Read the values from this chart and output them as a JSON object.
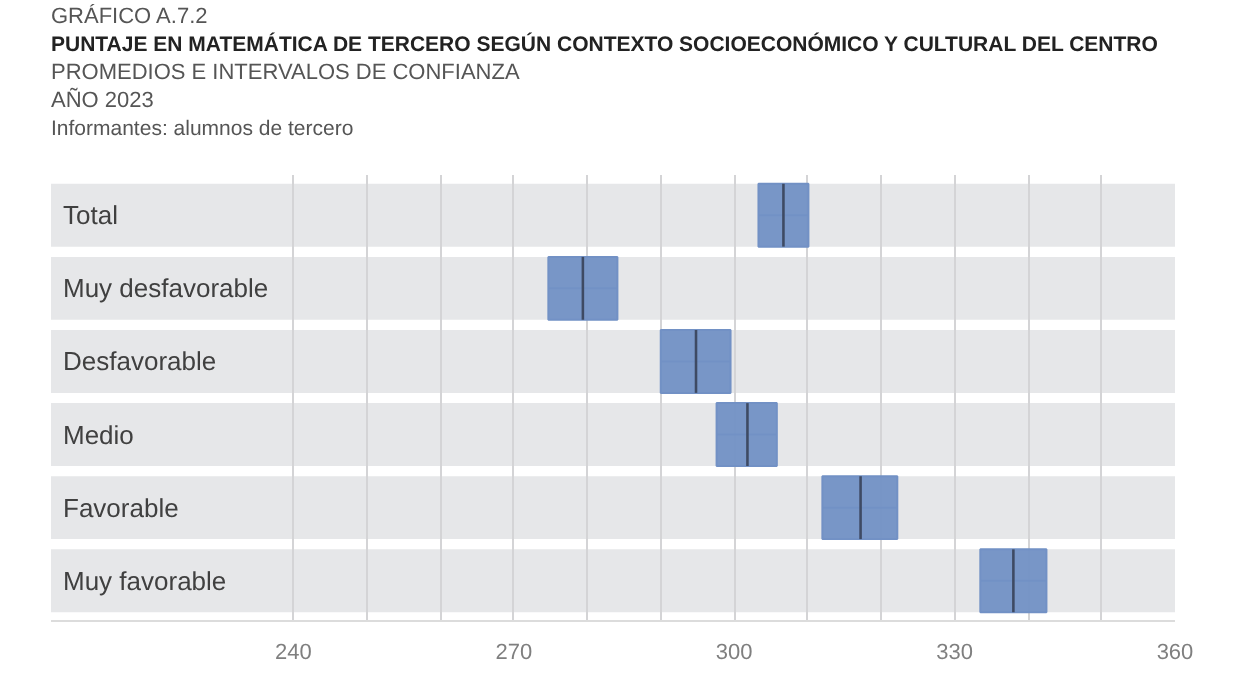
{
  "chart_data": {
    "type": "box",
    "orientation": "horizontal",
    "title": "PUNTAJE EN MATEMÁTICA DE TERCERO SEGÚN CONTEXTO SOCIOECONÓMICO Y CULTURAL DEL CENTRO",
    "subtitle": "PROMEDIOS E INTERVALOS DE CONFIANZA",
    "annotations": [
      "GRÁFICO A.7.2",
      "AÑO 2023",
      "Informantes: alumnos de tercero"
    ],
    "categories": [
      "Total",
      "Muy desfavorable",
      "Desfavorable",
      "Medio",
      "Favorable",
      "Muy favorable"
    ],
    "series": [
      {
        "color": "#7291c5",
        "boxes": [
          {
            "low": 303.3,
            "q1": 303.3,
            "median": 306.7,
            "q3": 310.1,
            "high": 310.1
          },
          {
            "low": 274.7,
            "q1": 274.7,
            "median": 279.4,
            "q3": 284.1,
            "high": 284.1
          },
          {
            "low": 290.0,
            "q1": 290.0,
            "median": 294.8,
            "q3": 299.5,
            "high": 299.5
          },
          {
            "low": 297.6,
            "q1": 297.6,
            "median": 301.8,
            "q3": 305.8,
            "high": 305.8
          },
          {
            "low": 312.0,
            "q1": 312.0,
            "median": 317.2,
            "q3": 322.2,
            "high": 322.2
          },
          {
            "low": 333.5,
            "q1": 333.5,
            "median": 338.0,
            "q3": 342.5,
            "high": 342.5
          }
        ]
      }
    ],
    "xlim": [
      207,
      360
    ],
    "xticks": [
      240,
      {
        "value": 250,
        "label": null
      },
      {
        "value": 260,
        "label": null
      },
      270,
      {
        "value": 280,
        "label": null
      },
      {
        "value": 290,
        "label": null
      },
      300,
      {
        "value": 310,
        "label": null
      },
      {
        "value": 320,
        "label": null
      },
      330,
      {
        "value": 340,
        "label": null
      },
      {
        "value": 350,
        "label": null
      },
      360
    ],
    "bands": [
      {
        "axis": "y",
        "from": "Total",
        "to": "Total",
        "color": "#e6e7e9"
      },
      {
        "axis": "y",
        "from": "Muy desfavorable",
        "to": "Muy desfavorable",
        "color": "#e6e7e9"
      },
      {
        "axis": "y",
        "from": "Desfavorable",
        "to": "Desfavorable",
        "color": "#e6e7e9"
      },
      {
        "axis": "y",
        "from": "Medio",
        "to": "Medio",
        "color": "#e6e7e9"
      },
      {
        "axis": "y",
        "from": "Favorable",
        "to": "Favorable",
        "color": "#e6e7e9"
      },
      {
        "axis": "y",
        "from": "Muy favorable",
        "to": "Muy favorable",
        "color": "#e6e7e9"
      }
    ],
    "grid": "x"
  }
}
